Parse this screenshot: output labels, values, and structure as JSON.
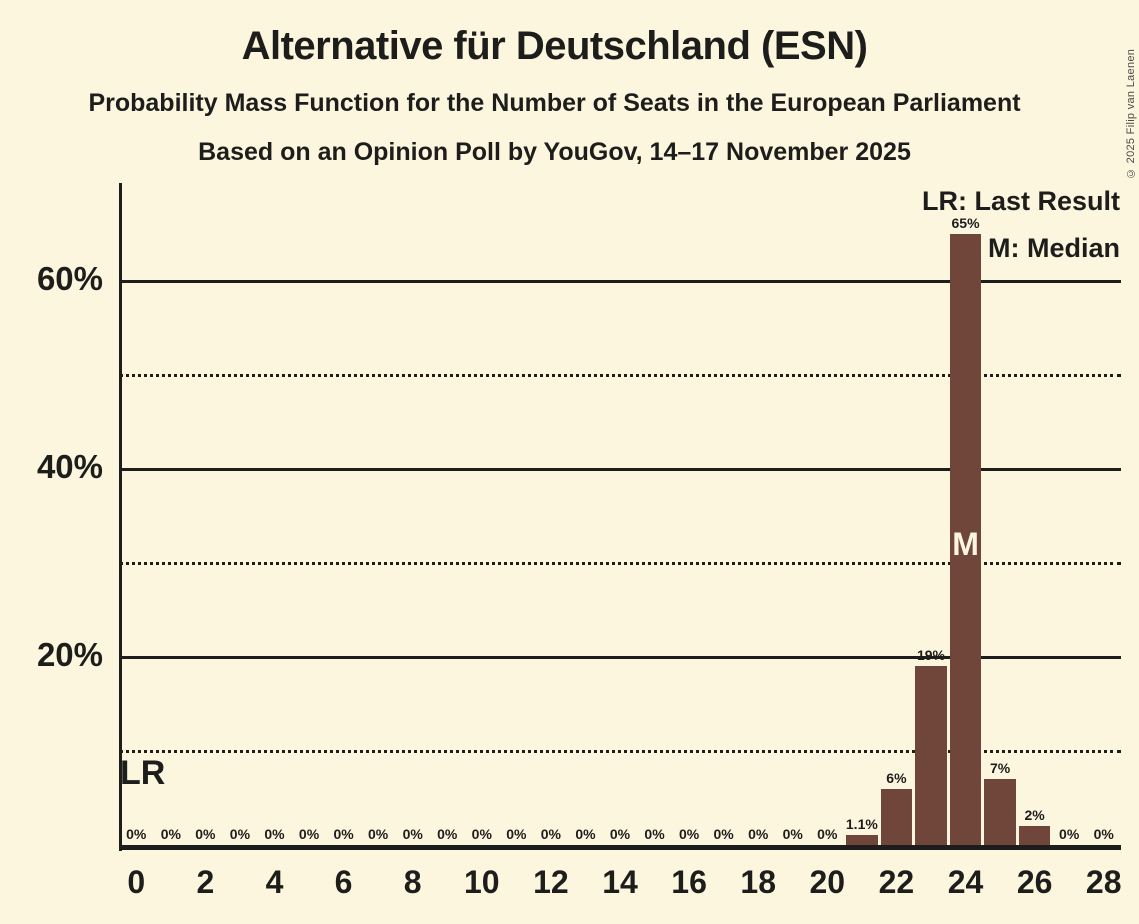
{
  "header": {
    "title": "Alternative für Deutschland (ESN)",
    "subtitle1": "Probability Mass Function for the Number of Seats in the European Parliament",
    "subtitle2": "Based on an Opinion Poll by YouGov, 14–17 November 2025"
  },
  "copyright": "© 2025 Filip van Laenen",
  "legend": {
    "lr": "LR: Last Result",
    "median": "M: Median"
  },
  "chart_data": {
    "type": "bar",
    "title": "Alternative für Deutschland (ESN) — Probability Mass Function for the Number of Seats in the European Parliament",
    "categories": [
      0,
      1,
      2,
      3,
      4,
      5,
      6,
      7,
      8,
      9,
      10,
      11,
      12,
      13,
      14,
      15,
      16,
      17,
      18,
      19,
      20,
      21,
      22,
      23,
      24,
      25,
      26,
      27,
      28
    ],
    "values": [
      0,
      0,
      0,
      0,
      0,
      0,
      0,
      0,
      0,
      0,
      0,
      0,
      0,
      0,
      0,
      0,
      0,
      0,
      0,
      0,
      0,
      1.1,
      6,
      19,
      65,
      7,
      2,
      0,
      0
    ],
    "bar_labels": [
      "0%",
      "0%",
      "0%",
      "0%",
      "0%",
      "0%",
      "0%",
      "0%",
      "0%",
      "0%",
      "0%",
      "0%",
      "0%",
      "0%",
      "0%",
      "0%",
      "0%",
      "0%",
      "0%",
      "0%",
      "0%",
      "1.1%",
      "6%",
      "19%",
      "65%",
      "7%",
      "2%",
      "0%",
      "0%"
    ],
    "x_ticks": [
      {
        "seat": 0,
        "label": "0"
      },
      {
        "seat": 2,
        "label": "2"
      },
      {
        "seat": 4,
        "label": "4"
      },
      {
        "seat": 6,
        "label": "6"
      },
      {
        "seat": 8,
        "label": "8"
      },
      {
        "seat": 10,
        "label": "10"
      },
      {
        "seat": 12,
        "label": "12"
      },
      {
        "seat": 14,
        "label": "14"
      },
      {
        "seat": 16,
        "label": "16"
      },
      {
        "seat": 18,
        "label": "18"
      },
      {
        "seat": 20,
        "label": "20"
      },
      {
        "seat": 22,
        "label": "22"
      },
      {
        "seat": 24,
        "label": "24"
      },
      {
        "seat": 26,
        "label": "26"
      },
      {
        "seat": 28,
        "label": "28"
      }
    ],
    "y_axis": {
      "ticks": [
        {
          "pct": 20,
          "label": "20%"
        },
        {
          "pct": 40,
          "label": "40%"
        },
        {
          "pct": 60,
          "label": "60%"
        }
      ],
      "minor_gridlines_pct": [
        10,
        30,
        50
      ]
    },
    "ylim": [
      0,
      70
    ],
    "grid": "horizontal",
    "legend_position": "top-right",
    "annotations": {
      "lr_text": "LR",
      "median_text": "M",
      "median_seat": 24
    },
    "colors": {
      "background": "#fdf6df",
      "bar": "#6f4639",
      "text": "#1d1d1b",
      "median_text": "#fdf6df"
    }
  }
}
